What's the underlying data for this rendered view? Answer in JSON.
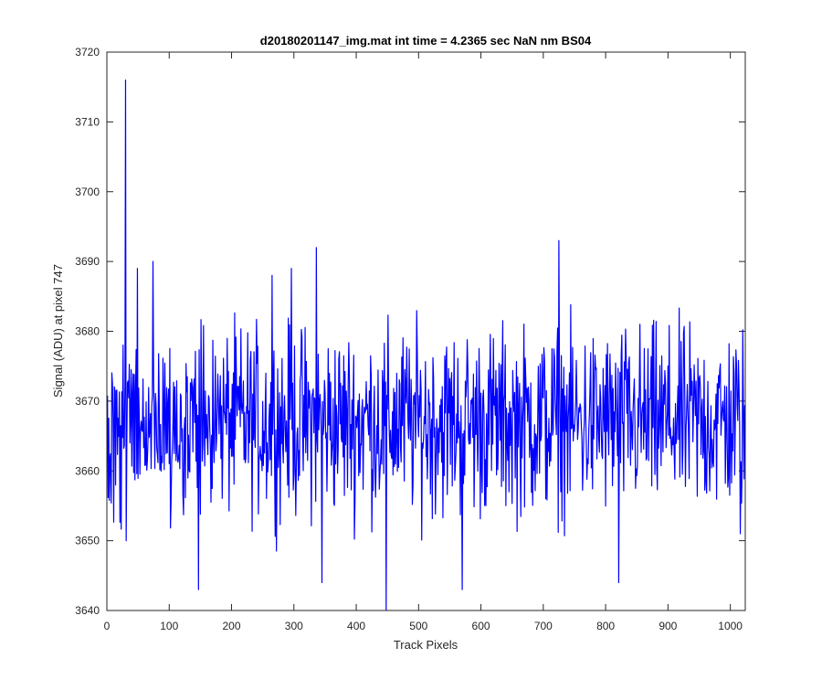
{
  "chart_data": {
    "type": "line",
    "title": "d20180201147_img.mat int time = 4.2365 sec  NaN nm BS04",
    "xlabel": "Track Pixels",
    "ylabel": "Signal (ADU) at pixel 747",
    "xlim": [
      0,
      1024
    ],
    "ylim": [
      3640,
      3720
    ],
    "xticks": [
      0,
      100,
      200,
      300,
      400,
      500,
      600,
      700,
      800,
      900,
      1000
    ],
    "yticks": [
      3640,
      3650,
      3660,
      3670,
      3680,
      3690,
      3700,
      3710,
      3720
    ],
    "grid": false,
    "legend": "none",
    "line_color": "#0000ff",
    "series": [
      {
        "x_start": 1,
        "x_step": 1,
        "point_count": 1024,
        "baseline": 3667,
        "noise_amplitude": 6.5,
        "anchor_points": [
          [
            30,
            3716
          ],
          [
            31,
            3650
          ],
          [
            49,
            3689
          ],
          [
            74,
            3690
          ],
          [
            147,
            3643
          ],
          [
            265,
            3688
          ],
          [
            296,
            3689
          ],
          [
            336,
            3692
          ],
          [
            345,
            3644
          ],
          [
            448,
            3640
          ],
          [
            570,
            3643
          ],
          [
            725,
            3693
          ],
          [
            821,
            3644
          ],
          [
            1016,
            3651
          ]
        ]
      }
    ]
  }
}
